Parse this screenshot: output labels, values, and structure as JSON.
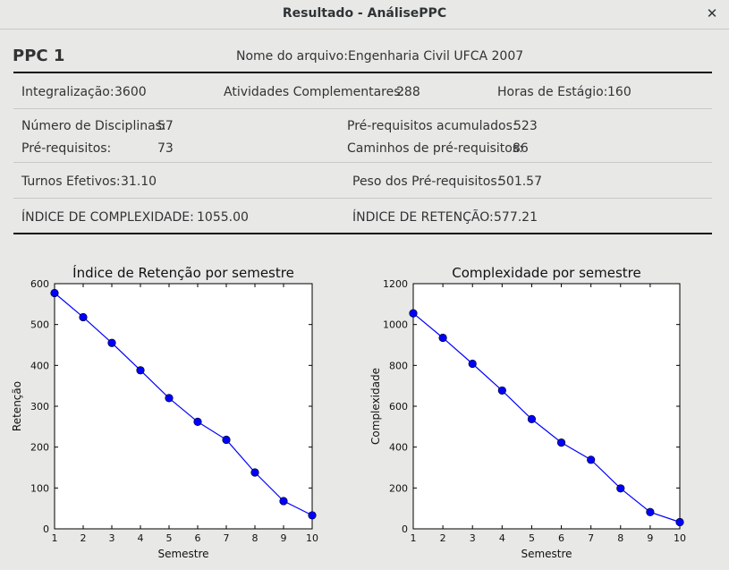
{
  "window": {
    "title": "Resultado - AnálisePPC"
  },
  "header": {
    "ppc_label": "PPC 1",
    "file_label": "Nome do arquivo:",
    "file_value": "Engenharia Civil UFCA 2007"
  },
  "stats": {
    "integralizacao_label": "Integralização:",
    "integralizacao_value": "3600",
    "atividades_label": "Atividades Complementares:",
    "atividades_value": "288",
    "estagio_label": "Horas de Estágio:",
    "estagio_value": "160",
    "num_disciplinas_label": "Número de Disciplinas:",
    "num_disciplinas_value": "57",
    "prereq_acum_label": "Pré-requisitos acumulados:",
    "prereq_acum_value": "523",
    "prereq_label": "Pré-requisitos:",
    "prereq_value": "73",
    "caminhos_label": "Caminhos de pré-requisitos:",
    "caminhos_value": "86",
    "turnos_label": "Turnos Efetivos:",
    "turnos_value": "31.10",
    "peso_label": "Peso dos Pré-requisitos:",
    "peso_value": "501.57",
    "complexidade_label": "ÍNDICE DE COMPLEXIDADE:",
    "complexidade_value": "1055.00",
    "retencao_label": "ÍNDICE DE RETENÇÃO:",
    "retencao_value": "577.21"
  },
  "chart_data": [
    {
      "type": "line",
      "title": "Índice de Retenção por semestre",
      "xlabel": "Semestre",
      "ylabel": "Retenção",
      "x": [
        1,
        2,
        3,
        4,
        5,
        6,
        7,
        8,
        9,
        10
      ],
      "series": [
        {
          "values": [
            577,
            518,
            455,
            388,
            320,
            262,
            218,
            138,
            68,
            33
          ]
        }
      ],
      "xlim": [
        1,
        10
      ],
      "ylim": [
        0,
        600
      ],
      "xticks": [
        "1",
        "2",
        "3",
        "4",
        "5",
        "6",
        "7",
        "8",
        "9",
        "10"
      ],
      "yticks": [
        "0",
        "100",
        "200",
        "300",
        "400",
        "500",
        "600"
      ],
      "color": "#0000ff",
      "grid": false
    },
    {
      "type": "line",
      "title": "Complexidade por semestre",
      "xlabel": "Semestre",
      "ylabel": "Complexidade",
      "x": [
        1,
        2,
        3,
        4,
        5,
        6,
        7,
        8,
        9,
        10
      ],
      "series": [
        {
          "values": [
            1055,
            935,
            808,
            677,
            537,
            422,
            338,
            198,
            82,
            33
          ]
        }
      ],
      "xlim": [
        1,
        10
      ],
      "ylim": [
        0,
        1200
      ],
      "xticks": [
        "1",
        "2",
        "3",
        "4",
        "5",
        "6",
        "7",
        "8",
        "9",
        "10"
      ],
      "yticks": [
        "0",
        "200",
        "400",
        "600",
        "800",
        "1000",
        "1200"
      ],
      "color": "#0000ff",
      "grid": false
    }
  ]
}
